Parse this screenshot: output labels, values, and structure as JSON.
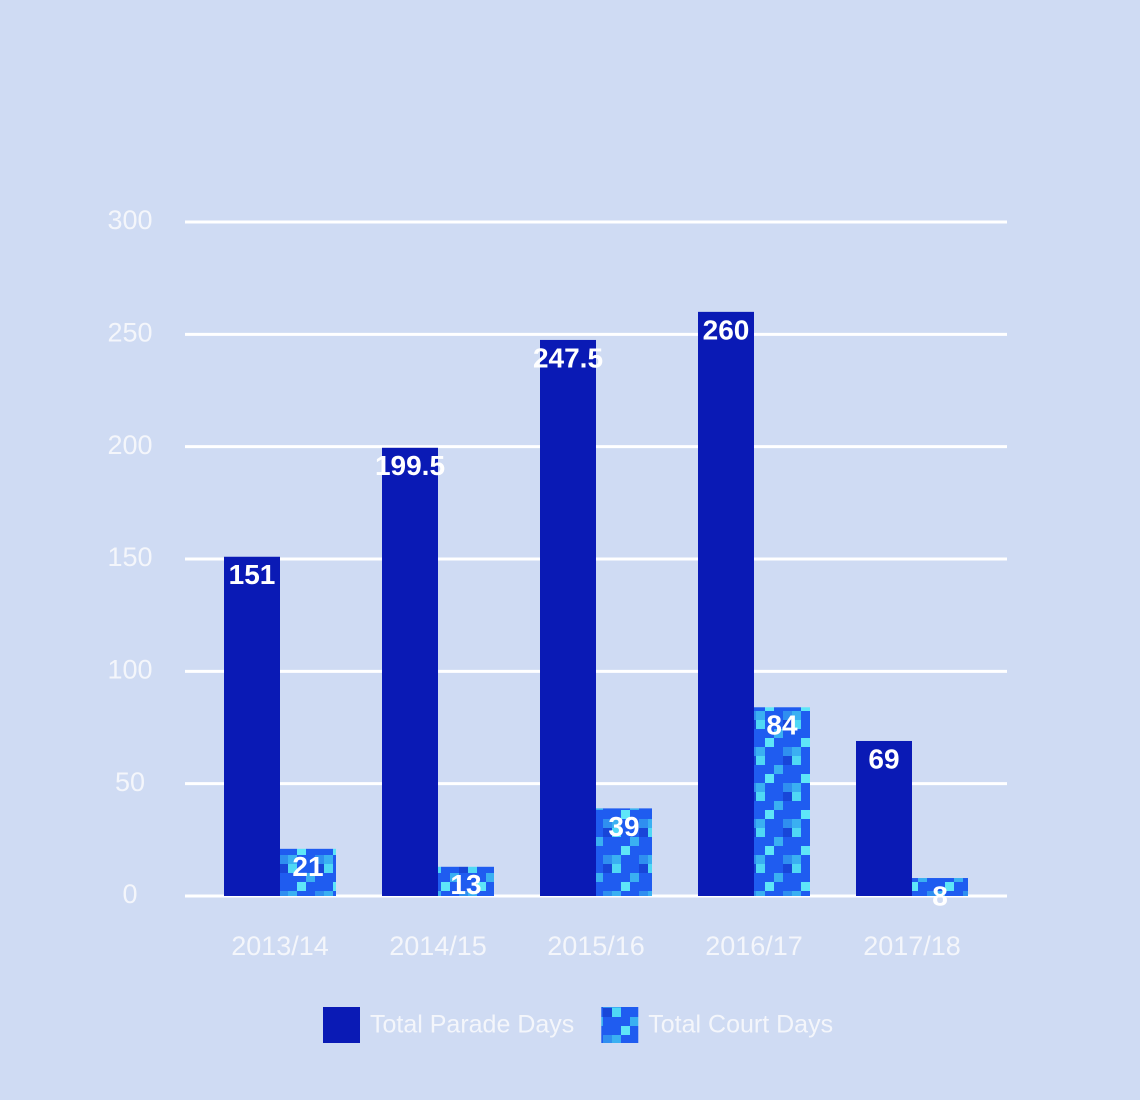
{
  "chart_data": {
    "type": "bar",
    "categories": [
      "2013/14",
      "2014/15",
      "2015/16",
      "2016/17",
      "2017/18"
    ],
    "series": [
      {
        "name": "Total Parade Days",
        "color": "#0a1ab5",
        "values": [
          151,
          199.5,
          247.5,
          260,
          69
        ]
      },
      {
        "name": "Total Court Days",
        "color": "#1f5cf0",
        "values": [
          21,
          13,
          39,
          84,
          8
        ]
      }
    ],
    "ylim": [
      0,
      300
    ],
    "yticks": [
      0,
      50,
      100,
      150,
      200,
      250,
      300
    ],
    "grid": true
  }
}
